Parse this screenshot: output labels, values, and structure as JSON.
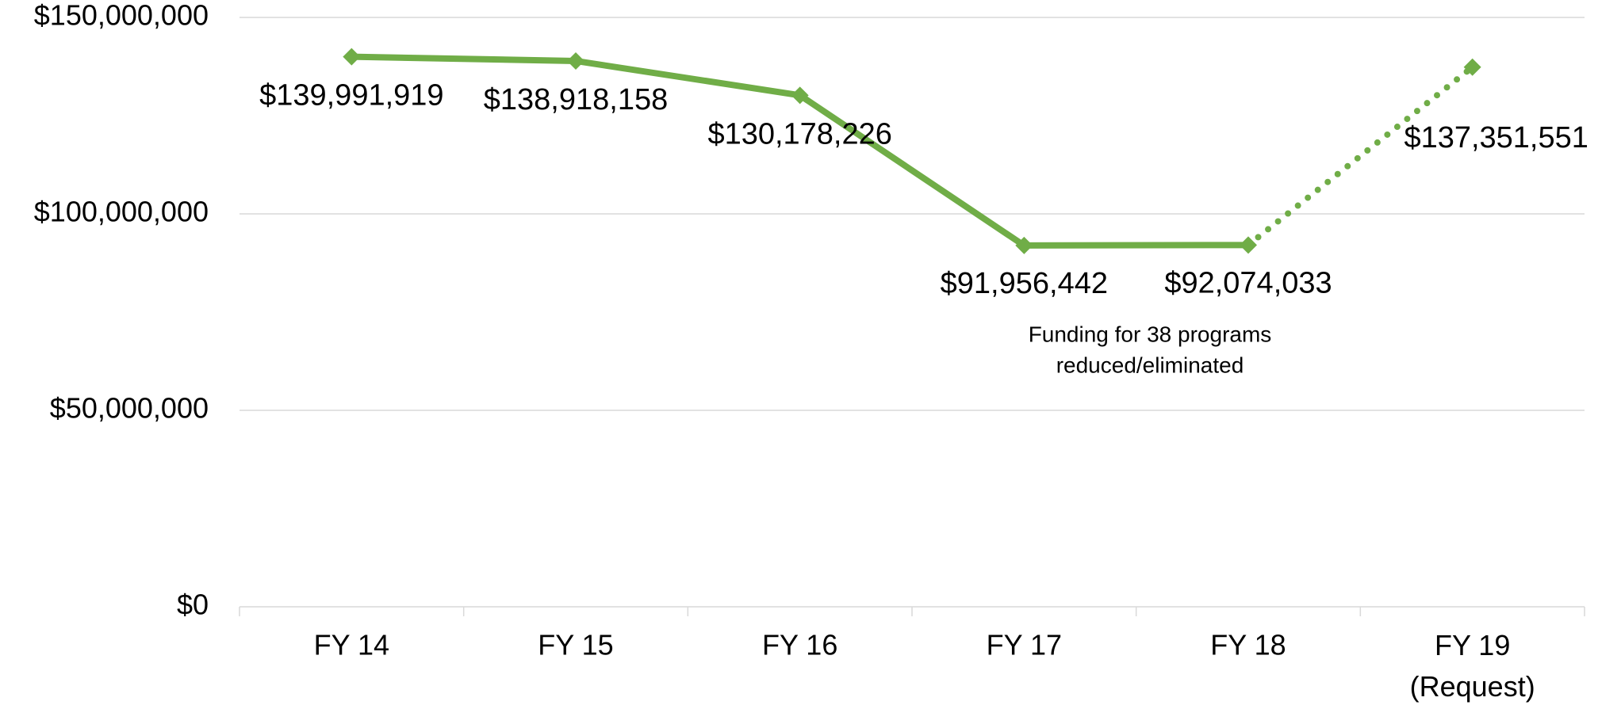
{
  "chart_data": {
    "type": "line",
    "categories": [
      "FY 14",
      "FY 15",
      "FY 16",
      "FY 17",
      "FY 18",
      "FY 19\n(Request)"
    ],
    "values": [
      139991919,
      138918158,
      130178226,
      91956442,
      92074033,
      137351551
    ],
    "value_labels": [
      "$139,991,919",
      "$138,918,158",
      "$130,178,226",
      "$91,956,442",
      "$92,074,033",
      "$137,351,551"
    ],
    "color": "#70ad47",
    "dotted_from": 4,
    "ylim": [
      0,
      150000000
    ],
    "yticks": [
      {
        "value": 0,
        "label": "$0"
      },
      {
        "value": 50000000,
        "label": "$50,000,000"
      },
      {
        "value": 100000000,
        "label": "$100,000,000"
      },
      {
        "value": 150000000,
        "label": "$150,000,000"
      }
    ],
    "grid": true,
    "annotation": [
      "Funding for 38 programs",
      "reduced/eliminated"
    ]
  }
}
